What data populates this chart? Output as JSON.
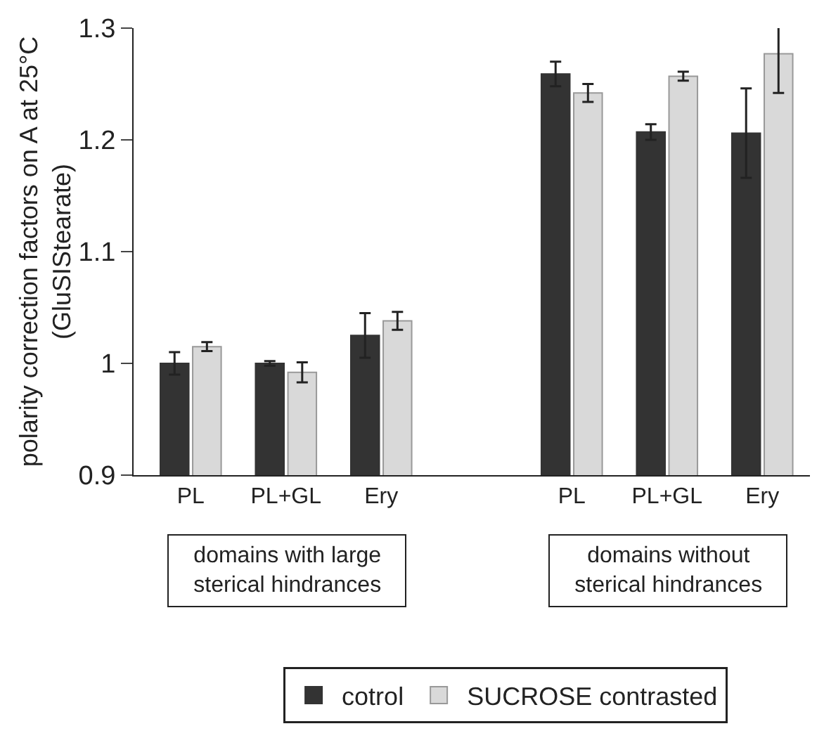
{
  "chart_data": {
    "type": "bar",
    "ylabel": "polarity correction factors on A at 25°C (GluSIStearate)",
    "categories": [
      "PL",
      "PL+GL",
      "Ery",
      null,
      "PL",
      "PL+GL",
      "Ery"
    ],
    "series": [
      {
        "name": "cotrol",
        "color": "#333333",
        "values": [
          1.0,
          1.0,
          1.025,
          null,
          1.259,
          1.207,
          1.206
        ],
        "errors": [
          0.01,
          0.002,
          0.02,
          null,
          0.011,
          0.007,
          0.04
        ]
      },
      {
        "name": "SUCROSE contrasted",
        "color": "#d9d9d9",
        "values": [
          1.015,
          0.992,
          1.038,
          null,
          1.242,
          1.257,
          1.277
        ],
        "errors": [
          0.004,
          0.009,
          0.008,
          null,
          0.008,
          0.004,
          0.035
        ]
      }
    ],
    "ylim": [
      0.9,
      1.3
    ],
    "yticks": [
      0.9,
      1,
      1.1,
      1.2,
      1.3
    ],
    "grid": false,
    "legend": "bottom",
    "annotations": [
      "domains with large sterical hindrances",
      "domains without sterical hindrances"
    ]
  }
}
